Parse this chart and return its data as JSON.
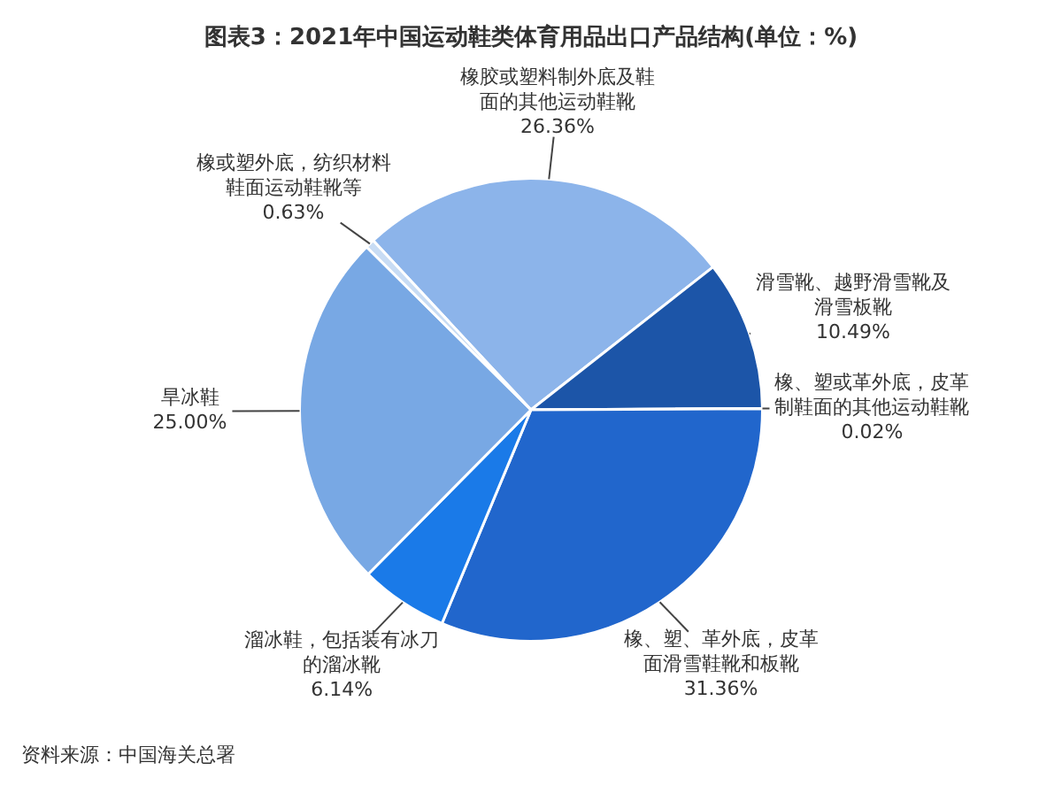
{
  "chart_data": {
    "type": "pie",
    "title": "图表3：2021年中国运动鞋类体育用品出口产品结构(单位：%)",
    "categories": [
      "橡胶或塑料制外底及鞋面的其他运动鞋靴",
      "滑雪靴、越野滑雪靴及滑雪板靴",
      "橡、塑或革外底，皮革制鞋面的其他运动鞋靴",
      "橡、塑、革外底，皮革面滑雪鞋靴和板靴",
      "溜冰鞋，包括装有冰刀的溜冰靴",
      "旱冰鞋",
      "橡或塑外底，纺织材料鞋面运动鞋靴等"
    ],
    "values": [
      26.36,
      10.49,
      0.02,
      31.36,
      6.14,
      25.0,
      0.63
    ],
    "colors": [
      "#8cb4ea",
      "#1c55a8",
      "#b0cdf0",
      "#2166cc",
      "#1a7ae8",
      "#78a8e4",
      "#c8dcf4"
    ],
    "value_labels": [
      "26.36%",
      "10.49%",
      "0.02%",
      "31.36%",
      "6.14%",
      "25.00%",
      "0.63%"
    ],
    "legend": false,
    "annotations": [
      "资料来源：中国海关总署"
    ]
  }
}
